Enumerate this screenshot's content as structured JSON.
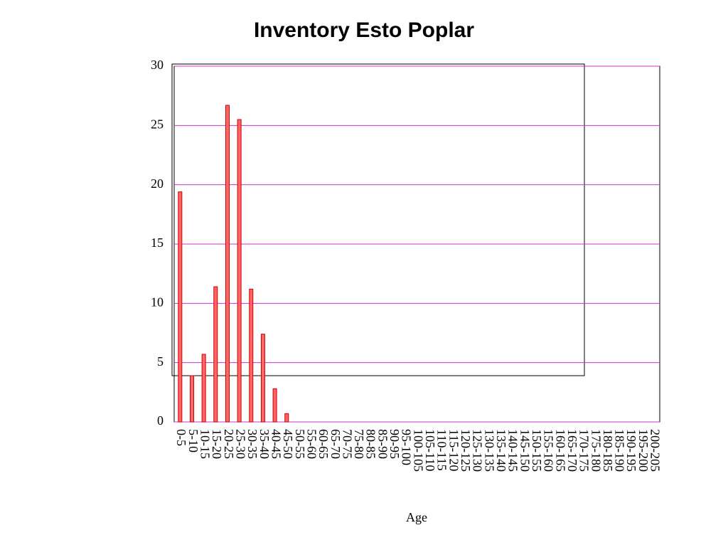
{
  "chart_data": {
    "type": "bar",
    "title": "Inventory Esto Poplar",
    "x_label": "Age",
    "categories": [
      "0-5",
      "5-10",
      "10-15",
      "15-20",
      "20-25",
      "25-30",
      "30-35",
      "35-40",
      "40-45",
      "45-50",
      "50-55",
      "55-60",
      "60-65",
      "65-70",
      "70-75",
      "75-80",
      "80-85",
      "85-90",
      "90-95",
      "95-100",
      "100-105",
      "105-110",
      "110-115",
      "115-120",
      "120-125",
      "125-130",
      "130-135",
      "135-140",
      "140-145",
      "145-150",
      "150-155",
      "155-160",
      "160-165",
      "165-170",
      "170-175",
      "175-180",
      "180-185",
      "185-190",
      "190-195",
      "195-200",
      "200-205"
    ],
    "values": [
      19.4,
      3.9,
      5.7,
      11.4,
      26.7,
      25.5,
      11.2,
      7.4,
      2.8,
      0.7,
      0,
      0,
      0,
      0,
      0,
      0,
      0,
      0,
      0,
      0,
      0,
      0,
      0,
      0,
      0,
      0,
      0,
      0,
      0,
      0,
      0,
      0,
      0,
      0,
      0,
      0,
      0,
      0,
      0,
      0,
      0
    ],
    "color": "#ff6666",
    "ylim": [
      0,
      30
    ],
    "yticks": [
      0,
      5,
      10,
      15,
      20,
      25,
      30
    ],
    "grid": true,
    "grid_color": "#cc33cc"
  }
}
